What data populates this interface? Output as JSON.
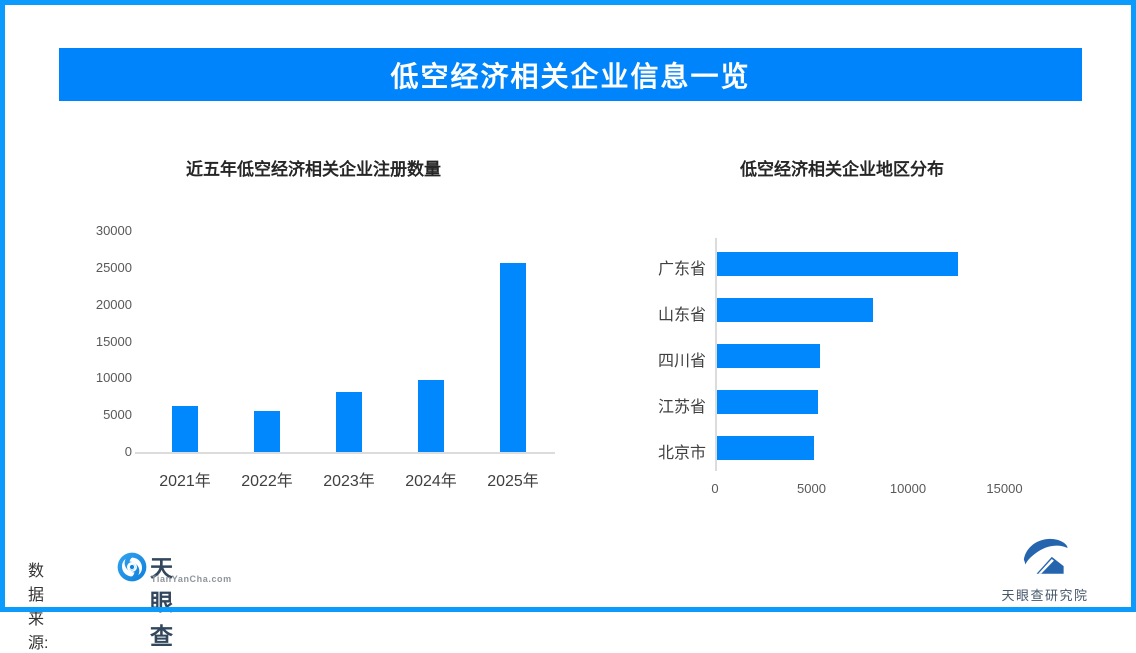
{
  "banner": {
    "title": "低空经济相关企业信息一览",
    "bg_color": "#0084fb",
    "text_color": "#ffffff"
  },
  "chart_data": [
    {
      "type": "bar",
      "orientation": "vertical",
      "title": "近五年低空经济相关企业注册数量",
      "categories": [
        "2021年",
        "2022年",
        "2023年",
        "2024年",
        "2025年"
      ],
      "values": [
        6200,
        5600,
        8100,
        9750,
        25650
      ],
      "xlabel": "",
      "ylabel": "",
      "ylim": [
        0,
        30000
      ],
      "yticks": [
        0,
        5000,
        10000,
        15000,
        20000,
        25000,
        30000
      ],
      "bar_color": "#0088fc",
      "grid": false,
      "legend": "none"
    },
    {
      "type": "bar",
      "orientation": "horizontal",
      "title": "低空经济相关企业地区分布",
      "categories": [
        "广东省",
        "山东省",
        "四川省",
        "江苏省",
        "北京市"
      ],
      "values": [
        12500,
        8100,
        5350,
        5250,
        5000
      ],
      "xlabel": "",
      "ylabel": "",
      "xlim": [
        0,
        15500
      ],
      "xticks": [
        0,
        5000,
        10000,
        15000
      ],
      "bar_color": "#0088fc",
      "grid": false,
      "legend": "none"
    }
  ],
  "footer": {
    "source_label": "数据来源:",
    "logo": {
      "name": "天眼查",
      "domain": "TianYanCha.com"
    },
    "institute": {
      "name": "天眼查研究院"
    }
  },
  "colors": {
    "page_border": "#0a9bfc",
    "banner_blue": "#0084fb",
    "bar_blue": "#0088fc",
    "axis_gray": "#dcdcdc"
  }
}
